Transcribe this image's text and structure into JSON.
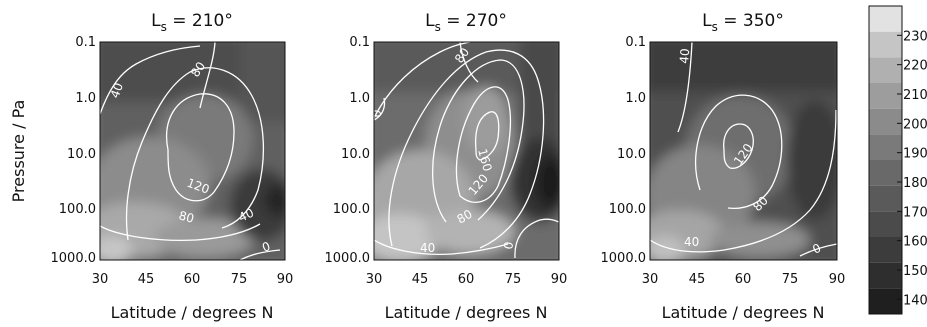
{
  "chart_data": {
    "type": "heatmap",
    "ylabel": "Pressure / Pa",
    "xlabel": "Latitude / degrees N",
    "x_ticks": [
      30,
      45,
      60,
      75,
      90
    ],
    "y_ticks": [
      "0.1",
      "1.0",
      "10.0",
      "100.0",
      "1000.0"
    ],
    "xlim": [
      30,
      90
    ],
    "ylim": [
      1000,
      0.1
    ],
    "y_scale": "log",
    "colorbar": {
      "ticks": [
        140,
        150,
        160,
        170,
        180,
        190,
        200,
        210,
        220,
        230
      ],
      "range": [
        135,
        240
      ],
      "colors": [
        "#1f1f1f",
        "#2e2e2e",
        "#3c3c3c",
        "#4b4b4b",
        "#5a5a5a",
        "#696969",
        "#7a7a7a",
        "#8b8b8b",
        "#9d9d9d",
        "#b0b0b0",
        "#c5c5c5",
        "#e2e2e2"
      ]
    },
    "panels": [
      {
        "title_main": "L",
        "title_sub": "s",
        "title_rest": " = 210°",
        "contour_labels": [
          "40",
          "80",
          "120",
          "80",
          "40",
          "0"
        ]
      },
      {
        "title_main": "L",
        "title_sub": "s",
        "title_rest": " = 270°",
        "contour_labels": [
          "80",
          "0",
          "160",
          "120",
          "80",
          "40",
          "0"
        ]
      },
      {
        "title_main": "L",
        "title_sub": "s",
        "title_rest": " = 350°",
        "contour_labels": [
          "40",
          "120",
          "80",
          "40",
          "0"
        ]
      }
    ]
  }
}
